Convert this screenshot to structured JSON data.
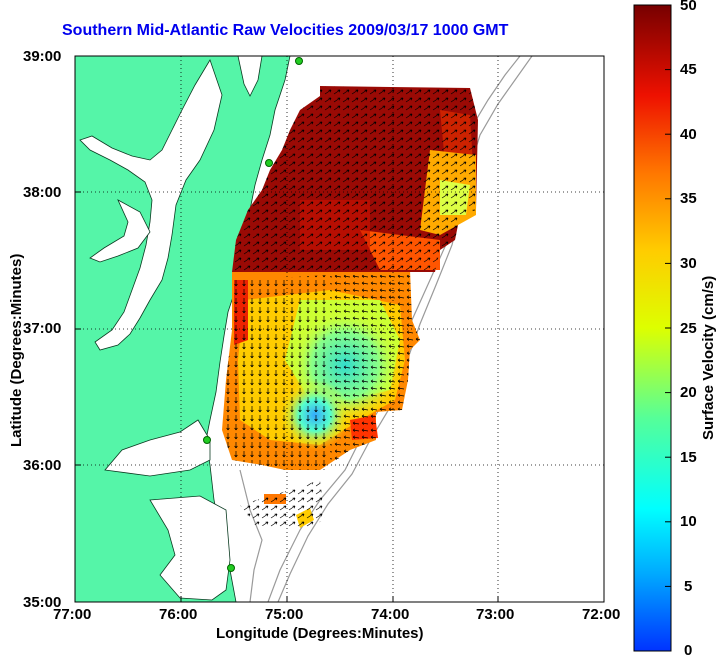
{
  "title": "Southern Mid-Atlantic Raw Velocities 2009/03/17 1000 GMT",
  "x_axis": {
    "label": "Longitude (Degrees:Minutes)",
    "ticks": [
      "77:00",
      "76:00",
      "75:00",
      "74:00",
      "73:00",
      "72:00"
    ]
  },
  "y_axis": {
    "label": "Latitude (Degrees:Minutes)",
    "ticks": [
      "39:00",
      "38:00",
      "37:00",
      "36:00",
      "35:00"
    ]
  },
  "colorbar": {
    "label": "Surface Velocity (cm/s)",
    "ticks": [
      "50",
      "45",
      "40",
      "35",
      "30",
      "25",
      "20",
      "15",
      "10",
      "5",
      "0"
    ],
    "range": [
      0,
      50
    ]
  },
  "colors": {
    "land": "#55f5a8",
    "ocean": "#ffffff",
    "title": "#0000ee",
    "contour": "#9a9a9a",
    "station": "#22cc22"
  }
}
